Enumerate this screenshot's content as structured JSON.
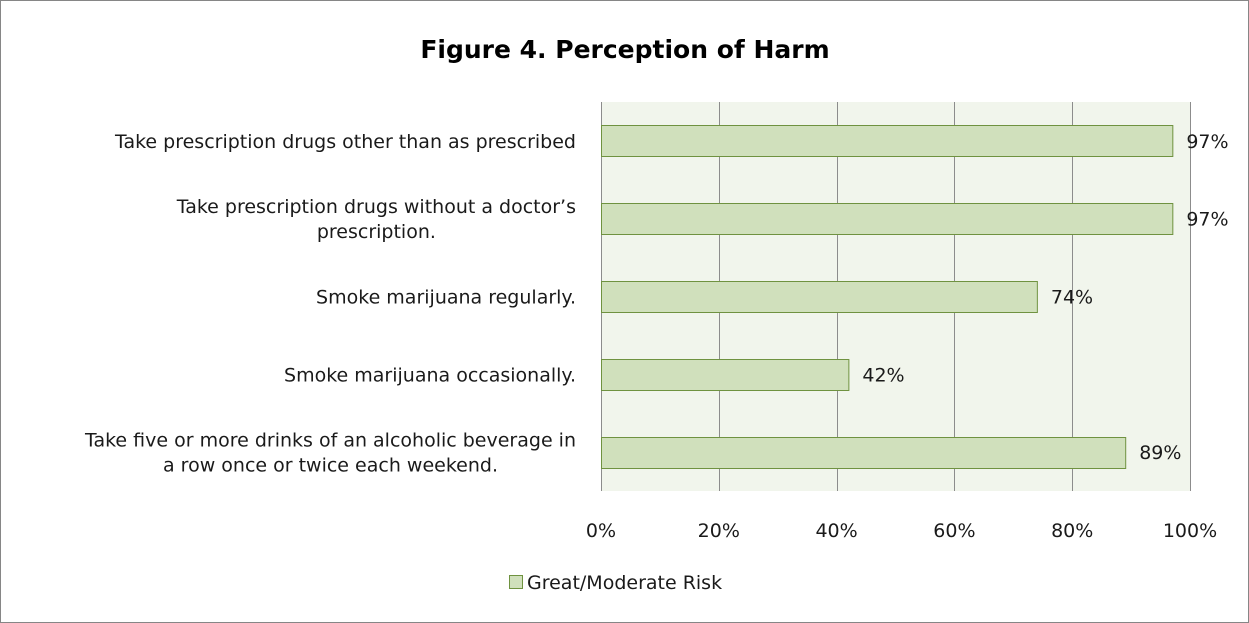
{
  "chart_data": {
    "type": "bar",
    "orientation": "horizontal",
    "title": "Figure 4. Perception of Harm",
    "categories": [
      [
        "Take prescription drugs other than as prescribed"
      ],
      [
        "Take prescription drugs without a doctor’s",
        "prescription."
      ],
      [
        "Smoke marijuana regularly."
      ],
      [
        "Smoke marijuana occasionally."
      ],
      [
        "Take five or more drinks of an alcoholic beverage in",
        "a row once or twice each weekend."
      ]
    ],
    "series": [
      {
        "name": "Great/Moderate Risk",
        "values": [
          97,
          97,
          74,
          42,
          89
        ],
        "data_labels": [
          "97%",
          "97%",
          "74%",
          "42%",
          "89%"
        ]
      }
    ],
    "xlim": [
      0,
      100
    ],
    "x_ticks": [
      0,
      20,
      40,
      60,
      80,
      100
    ],
    "x_tick_labels": [
      "0%",
      "20%",
      "40%",
      "60%",
      "80%",
      "100%"
    ],
    "grid": true,
    "legend_position": "bottom",
    "colors": {
      "bar_fill": "#d0e0bc",
      "bar_stroke": "#6f9240",
      "plot_background": "#f1f5ec",
      "gridline": "#8c8c8c",
      "frame_border": "#868686"
    }
  }
}
